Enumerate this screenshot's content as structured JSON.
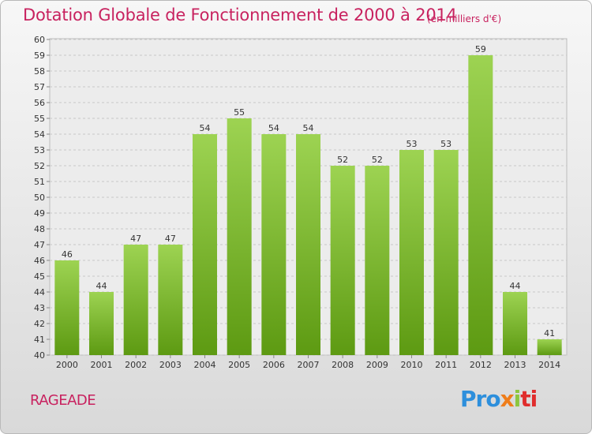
{
  "title": "Dotation Globale de Fonctionnement de 2000 à 2014",
  "subtitle": "(en milliers d'€)",
  "town": "RAGEADE",
  "logo": {
    "p1": "Pro",
    "p2": "x",
    "p3": "i",
    "p4": "ti"
  },
  "colors": {
    "title": "#c8225f",
    "bar_top": "#9dd352",
    "bar_bottom": "#5d9a12"
  },
  "chart_data": {
    "type": "bar",
    "categories": [
      "2000",
      "2001",
      "2002",
      "2003",
      "2004",
      "2005",
      "2006",
      "2007",
      "2008",
      "2009",
      "2010",
      "2011",
      "2012",
      "2013",
      "2014"
    ],
    "values": [
      46,
      44,
      47,
      47,
      54,
      55,
      54,
      54,
      52,
      52,
      53,
      53,
      59,
      44,
      41
    ],
    "ylim": [
      40,
      60
    ],
    "yticks": [
      40,
      41,
      42,
      43,
      44,
      45,
      46,
      47,
      48,
      49,
      50,
      51,
      52,
      53,
      54,
      55,
      56,
      57,
      58,
      59,
      60
    ],
    "grid": true,
    "data_labels": true
  }
}
